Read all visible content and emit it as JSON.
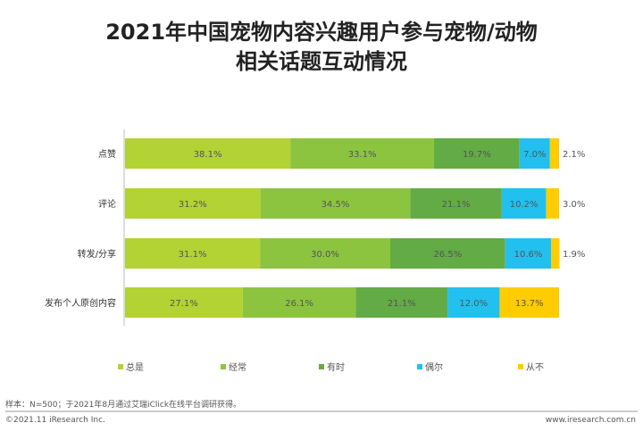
{
  "chart_data": {
    "type": "bar",
    "orientation": "horizontal",
    "stacked": true,
    "title": "2021年中国宠物内容兴趣用户参与宠物/动物相关话题互动情况",
    "title_lines": [
      "2021年中国宠物内容兴趣用户参与宠物/动物",
      "相关话题互动情况"
    ],
    "categories": [
      "点赞",
      "评论",
      "转发/分享",
      "发布个人原创内容"
    ],
    "series": [
      {
        "name": "总是",
        "color": "#b3d233",
        "values": [
          38.1,
          31.2,
          31.1,
          27.1
        ]
      },
      {
        "name": "经常",
        "color": "#8cc440",
        "values": [
          33.1,
          34.5,
          30.0,
          26.1
        ]
      },
      {
        "name": "有时",
        "color": "#62ab45",
        "values": [
          19.7,
          21.1,
          26.5,
          21.1
        ]
      },
      {
        "name": "偶尔",
        "color": "#21c0ef",
        "values": [
          7.0,
          10.2,
          10.6,
          12.0
        ]
      },
      {
        "name": "从不",
        "color": "#ffcc00",
        "values": [
          2.1,
          3.0,
          1.9,
          13.7
        ]
      }
    ],
    "value_labels": [
      [
        "38.1%",
        "33.1%",
        "19.7%",
        "7.0%",
        "2.1%"
      ],
      [
        "31.2%",
        "34.5%",
        "21.1%",
        "10.2%",
        "3.0%"
      ],
      [
        "31.1%",
        "30.0%",
        "26.5%",
        "10.6%",
        "1.9%"
      ],
      [
        "27.1%",
        "26.1%",
        "21.1%",
        "12.0%",
        "13.7%"
      ]
    ],
    "xlim": [
      0,
      100
    ],
    "grid": false,
    "legend_position": "bottom"
  },
  "footer": {
    "note": "样本：N=500；于2021年8月通过艾瑞iClick在线平台调研获得。",
    "copyright": "©2021.11 iResearch Inc.",
    "website": "www.iresearch.com.cn"
  }
}
